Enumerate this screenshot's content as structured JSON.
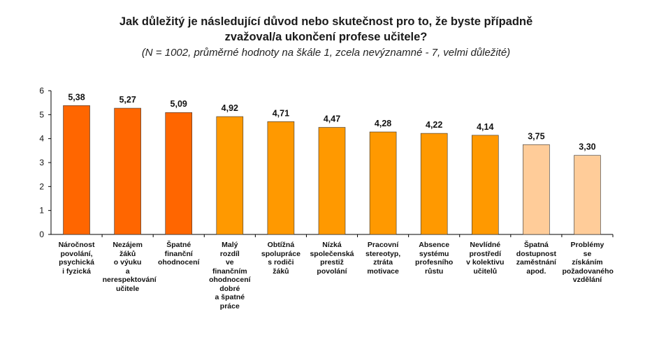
{
  "chart_data": {
    "type": "bar",
    "title": "Jak důležitý je následující důvod nebo skutečnost pro to, že byste případně zvažoval/a ukončení profese učitele?",
    "subtitle": "(N = 1002, průměrné hodnoty na škále 1, zcela nevýznamné - 7, velmi důležité)",
    "categories": [
      "Náročnost\npovolání,\npsychická\ni fyzická",
      "Nezájem\nžáků\no výuku\na\nnerespektování\nučitele",
      "Špatné\nfinanční\nohodnocení",
      "Malý\nrozdíl\nve\nfinančním\nohodnocení\ndobré\na špatné\npráce",
      "Obtížná\nspolupráce\ns rodiči\nžáků",
      "Nízká\nspolečenská\nprestiž\npovolání",
      "Pracovní\nstereotyp,\nztráta\nmotivace",
      "Absence\nsystému\nprofesního\nrůstu",
      "Nevlídné\nprostředí\nv kolektivu\nučitelů",
      "Špatná\ndostupnost\nzaměstnání\napod.",
      "Problémy\nse\nzískáním\npožadovaného\nvzdělání"
    ],
    "values": [
      5.38,
      5.27,
      5.09,
      4.92,
      4.71,
      4.47,
      4.28,
      4.22,
      4.14,
      3.75,
      3.3
    ],
    "value_labels": [
      "5,38",
      "5,27",
      "5,09",
      "4,92",
      "4,71",
      "4,47",
      "4,28",
      "4,22",
      "4,14",
      "3,75",
      "3,30"
    ],
    "bar_colors": [
      "#ff6600",
      "#ff6600",
      "#ff6600",
      "#ff9900",
      "#ff9900",
      "#ff9900",
      "#ff9900",
      "#ff9900",
      "#ff9900",
      "#ffcc99",
      "#ffcc99"
    ],
    "ylim": [
      0,
      6
    ],
    "yticks": [
      "0",
      "1",
      "2",
      "3",
      "4",
      "5",
      "6"
    ],
    "grid": false,
    "legend": false
  }
}
